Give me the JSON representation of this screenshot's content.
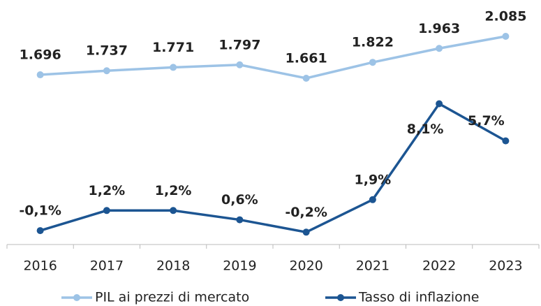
{
  "chart_data": {
    "type": "line",
    "categories": [
      "2016",
      "2017",
      "2018",
      "2019",
      "2020",
      "2021",
      "2022",
      "2023"
    ],
    "series": [
      {
        "name": "PIL ai prezzi di mercato",
        "color": "#9dc3e6",
        "axis": "y",
        "values": [
          1696,
          1737,
          1771,
          1797,
          1661,
          1822,
          1963,
          2085
        ],
        "value_labels": [
          "1.696",
          "1.737",
          "1.771",
          "1.797",
          "1.661",
          "1.822",
          "1.963",
          "2.085"
        ]
      },
      {
        "name": "Tasso di inflazione",
        "color": "#1c5592",
        "axis": "y2",
        "values": [
          -0.1,
          1.2,
          1.2,
          0.6,
          -0.2,
          1.9,
          8.1,
          5.7
        ],
        "value_labels": [
          "-0,1%",
          "1,2%",
          "1,2%",
          "0,6%",
          "-0,2%",
          "1,9%",
          "8,1%",
          "5,7%"
        ]
      }
    ],
    "ylim": [
      -22,
      2170
    ],
    "y2lim": [
      -1,
      13
    ],
    "legend": "bottom"
  }
}
